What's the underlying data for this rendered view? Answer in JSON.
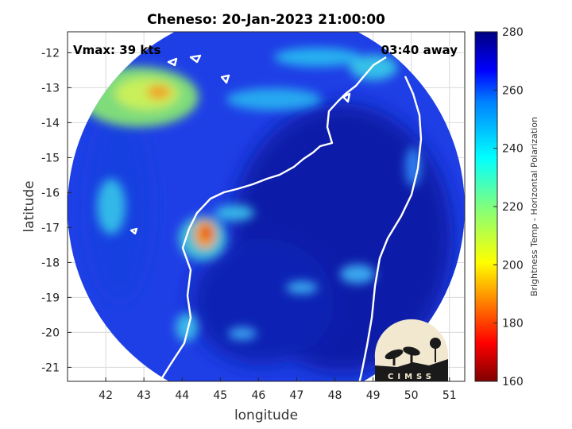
{
  "chart_data": {
    "type": "heatmap",
    "title": "Cheneso: 20-Jan-2023 21:00:00",
    "xlabel": "longitude",
    "ylabel": "latitude",
    "xlim": [
      41,
      51.4
    ],
    "ylim": [
      -21.4,
      -11.4
    ],
    "xticks": [
      42,
      43,
      44,
      45,
      46,
      47,
      48,
      49,
      50,
      51
    ],
    "yticks": [
      -12,
      -13,
      -14,
      -15,
      -16,
      -17,
      -18,
      -19,
      -20,
      -21
    ],
    "grid": true,
    "colorbar": {
      "label": "Brightness Temp - Horizontal Polarization",
      "min": 160,
      "max": 280,
      "ticks": [
        280,
        260,
        240,
        220,
        200,
        180,
        160
      ],
      "colormap": "jet"
    },
    "annotations": {
      "vmax": "Vmax: 39 kts",
      "time_away": "03:40 away"
    },
    "features": [
      {
        "name": "cold cloud",
        "lon": 44.6,
        "lat": -17.4,
        "value": 190
      },
      {
        "name": "cloud band",
        "lon": 43.0,
        "lat": -13.4,
        "value": 225
      },
      {
        "name": "cloud band",
        "lon": 46.4,
        "lat": -13.4,
        "value": 245
      }
    ]
  },
  "logo": {
    "text": "CIMSS"
  }
}
